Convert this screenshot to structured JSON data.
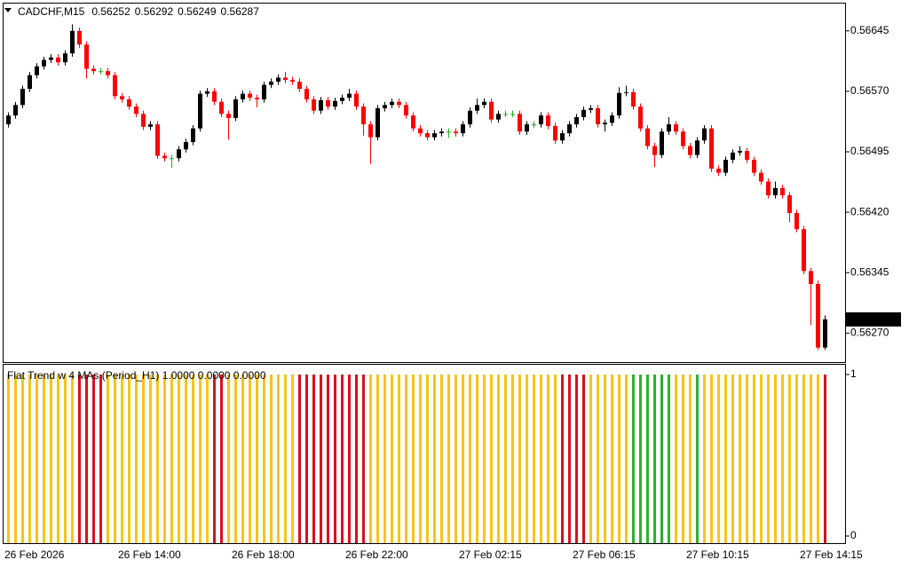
{
  "chart_data": [
    {
      "type": "candlestick",
      "symbol": "CADCHF,M15",
      "categories": [
        "26 Feb 2026",
        null,
        null,
        null,
        null,
        null,
        null,
        null,
        null,
        null,
        null,
        null,
        null,
        null,
        null,
        null,
        "26 Feb 14:00",
        null,
        null,
        null,
        null,
        null,
        null,
        null,
        null,
        null,
        null,
        null,
        null,
        null,
        null,
        null,
        "26 Feb 18:00",
        null,
        null,
        null,
        null,
        null,
        null,
        null,
        null,
        null,
        null,
        null,
        null,
        null,
        null,
        null,
        "26 Feb 22:00",
        null,
        null,
        null,
        null,
        null,
        null,
        null,
        null,
        null,
        null,
        null,
        null,
        null,
        null,
        null,
        "27 Feb 02:15",
        null,
        null,
        null,
        null,
        null,
        null,
        null,
        null,
        null,
        null,
        null,
        null,
        null,
        null,
        null,
        "27 Feb 06:15",
        null,
        null,
        null,
        null,
        null,
        null,
        null,
        null,
        null,
        null,
        null,
        null,
        null,
        null,
        null,
        "27 Feb 10:15",
        null,
        null,
        null,
        null,
        null,
        null,
        null,
        null,
        null,
        null,
        null,
        null,
        null,
        null,
        null,
        "27 Feb 14:15",
        null,
        null,
        null
      ],
      "open": [
        0.56529,
        0.5654,
        0.56553,
        0.56573,
        0.5659,
        0.56601,
        0.56609,
        0.56612,
        0.56606,
        0.56617,
        0.56645,
        0.56628,
        0.56598,
        0.56595,
        0.56595,
        0.5659,
        0.56564,
        0.5656,
        0.56551,
        0.56542,
        0.56526,
        0.56529,
        0.5649,
        0.56487,
        0.56487,
        0.56498,
        0.56507,
        0.56524,
        0.56567,
        0.5657,
        0.56557,
        0.56542,
        0.56537,
        0.5656,
        0.56567,
        0.56562,
        0.5656,
        0.56578,
        0.56582,
        0.56587,
        0.56584,
        0.56582,
        0.56573,
        0.5656,
        0.56546,
        0.56559,
        0.56551,
        0.56558,
        0.56562,
        0.56567,
        0.56551,
        0.56529,
        0.56513,
        0.56549,
        0.56553,
        0.56557,
        0.56553,
        0.5654,
        0.56524,
        0.56518,
        0.56513,
        0.56518,
        0.5652,
        0.5652,
        0.56518,
        0.56529,
        0.56546,
        0.56553,
        0.56557,
        0.56535,
        0.56542,
        0.56542,
        0.56542,
        0.5652,
        0.56529,
        0.56529,
        0.5654,
        0.56527,
        0.56509,
        0.56518,
        0.56529,
        0.56538,
        0.56547,
        0.56549,
        0.56529,
        0.56531,
        0.5654,
        0.56568,
        0.56569,
        0.56551,
        0.56524,
        0.56502,
        0.56491,
        0.5652,
        0.56529,
        0.5652,
        0.56502,
        0.56491,
        0.56509,
        0.56524,
        0.56474,
        0.56469,
        0.56485,
        0.56494,
        0.56496,
        0.56485,
        0.56469,
        0.56458,
        0.56441,
        0.5645,
        0.56441,
        0.56419,
        0.56399,
        0.56347,
        0.56331,
        0.56252
      ],
      "high": [
        0.56544,
        0.56557,
        0.56577,
        0.56594,
        0.56605,
        0.56613,
        0.56616,
        0.56616,
        0.56621,
        0.56653,
        0.56649,
        0.56632,
        0.56602,
        0.56599,
        0.56599,
        0.56594,
        0.56568,
        0.56564,
        0.56555,
        0.56546,
        0.56533,
        0.56533,
        0.56494,
        0.56491,
        0.56502,
        0.56511,
        0.56528,
        0.56571,
        0.56574,
        0.56574,
        0.56561,
        0.56546,
        0.56564,
        0.56571,
        0.56571,
        0.56566,
        0.56582,
        0.56586,
        0.56591,
        0.56594,
        0.56588,
        0.56586,
        0.56577,
        0.56564,
        0.56563,
        0.56563,
        0.56562,
        0.56566,
        0.56573,
        0.56571,
        0.56555,
        0.56533,
        0.56553,
        0.56557,
        0.56561,
        0.56561,
        0.56557,
        0.56544,
        0.56528,
        0.56522,
        0.56522,
        0.56524,
        0.56524,
        0.56524,
        0.56533,
        0.5655,
        0.56561,
        0.56561,
        0.56561,
        0.56546,
        0.56546,
        0.56546,
        0.56546,
        0.56533,
        0.56533,
        0.56544,
        0.56544,
        0.56531,
        0.56522,
        0.56533,
        0.56542,
        0.56551,
        0.56553,
        0.56553,
        0.56535,
        0.56544,
        0.56575,
        0.56577,
        0.56573,
        0.56555,
        0.56528,
        0.56506,
        0.56524,
        0.56538,
        0.56533,
        0.56524,
        0.56506,
        0.56513,
        0.56528,
        0.56528,
        0.56478,
        0.56489,
        0.56498,
        0.56502,
        0.565,
        0.56489,
        0.56473,
        0.56462,
        0.56458,
        0.56454,
        0.56445,
        0.56423,
        0.56403,
        0.56351,
        0.56335,
        0.56292
      ],
      "low": [
        0.56525,
        0.56536,
        0.56549,
        0.56569,
        0.56586,
        0.56597,
        0.56605,
        0.56602,
        0.56602,
        0.56613,
        0.56624,
        0.56586,
        0.56591,
        0.56591,
        0.56586,
        0.5656,
        0.56556,
        0.56547,
        0.56538,
        0.56522,
        0.56522,
        0.56486,
        0.56483,
        0.56475,
        0.56483,
        0.56494,
        0.56503,
        0.5652,
        0.56563,
        0.56553,
        0.56538,
        0.5651,
        0.56533,
        0.56556,
        0.56558,
        0.5655,
        0.56556,
        0.56574,
        0.56578,
        0.5658,
        0.56578,
        0.56569,
        0.56556,
        0.56542,
        0.56542,
        0.56547,
        0.56547,
        0.56554,
        0.56558,
        0.56547,
        0.56515,
        0.5648,
        0.56509,
        0.56545,
        0.56549,
        0.56549,
        0.56536,
        0.5652,
        0.56514,
        0.56509,
        0.56509,
        0.56514,
        0.56512,
        0.56514,
        0.56514,
        0.56525,
        0.56542,
        0.56549,
        0.56531,
        0.56531,
        0.56538,
        0.56538,
        0.56516,
        0.56516,
        0.56525,
        0.56525,
        0.56523,
        0.56505,
        0.56505,
        0.56514,
        0.56525,
        0.56534,
        0.56543,
        0.56525,
        0.5652,
        0.56527,
        0.56536,
        0.56564,
        0.56547,
        0.5652,
        0.56498,
        0.56476,
        0.56487,
        0.56516,
        0.56516,
        0.56498,
        0.56487,
        0.56487,
        0.56505,
        0.5647,
        0.56465,
        0.56465,
        0.56481,
        0.5649,
        0.56481,
        0.56465,
        0.56454,
        0.56437,
        0.56437,
        0.56437,
        0.56408,
        0.56395,
        0.56343,
        0.5628,
        0.56249,
        0.56249
      ],
      "close": [
        0.5654,
        0.56553,
        0.56573,
        0.5659,
        0.56601,
        0.56609,
        0.56612,
        0.56606,
        0.56617,
        0.56645,
        0.56628,
        0.56598,
        0.56595,
        0.56595,
        0.5659,
        0.56564,
        0.5656,
        0.56551,
        0.56542,
        0.56526,
        0.56529,
        0.5649,
        0.56487,
        0.56487,
        0.56498,
        0.56507,
        0.56524,
        0.56567,
        0.5657,
        0.56557,
        0.56542,
        0.56537,
        0.5656,
        0.56567,
        0.56562,
        0.5656,
        0.56578,
        0.56582,
        0.56587,
        0.56584,
        0.56582,
        0.56573,
        0.5656,
        0.56546,
        0.56559,
        0.56551,
        0.56558,
        0.56562,
        0.56567,
        0.56551,
        0.56529,
        0.56513,
        0.56549,
        0.56553,
        0.56557,
        0.56553,
        0.5654,
        0.56524,
        0.56518,
        0.56513,
        0.56518,
        0.5652,
        0.5652,
        0.56518,
        0.56529,
        0.56546,
        0.56553,
        0.56557,
        0.56535,
        0.56542,
        0.56542,
        0.56542,
        0.5652,
        0.56529,
        0.56529,
        0.5654,
        0.56527,
        0.56509,
        0.56518,
        0.56529,
        0.56538,
        0.56547,
        0.56549,
        0.56529,
        0.56531,
        0.5654,
        0.56568,
        0.56569,
        0.56551,
        0.56524,
        0.56502,
        0.56491,
        0.5652,
        0.56529,
        0.5652,
        0.56502,
        0.56491,
        0.56509,
        0.56524,
        0.56474,
        0.56469,
        0.56485,
        0.56494,
        0.56496,
        0.56485,
        0.56469,
        0.56458,
        0.56441,
        0.5645,
        0.56441,
        0.56419,
        0.56399,
        0.56347,
        0.56331,
        0.56252,
        0.56287
      ],
      "up_color": "#000000",
      "down_color": "#ff0000",
      "flat_color": "#22aa22",
      "ylim": [
        0.56234,
        0.5668
      ],
      "yticks": [
        0.56645,
        {
          "value": 0.5657,
          "label": "0.56570"
        },
        0.56495,
        {
          "value": 0.5642,
          "label": "0.56420"
        },
        0.56345,
        {
          "value": 0.5627,
          "label": "0.56270"
        }
      ]
    },
    {
      "type": "bar",
      "label": "Flat Trend w 4 MAs (Period_H1) 1.0000 0.0000 0.0000",
      "values": [
        1,
        1,
        1,
        1,
        1,
        1,
        1,
        1,
        1,
        1,
        1,
        1,
        1,
        1,
        1,
        1,
        1,
        1,
        1,
        1,
        1,
        1,
        1,
        1,
        1,
        1,
        1,
        1,
        1,
        1,
        1,
        1,
        1,
        1,
        1,
        1,
        1,
        1,
        1,
        1,
        1,
        1,
        1,
        1,
        1,
        1,
        1,
        1,
        1,
        1,
        1,
        1,
        1,
        1,
        1,
        1,
        1,
        1,
        1,
        1,
        1,
        1,
        1,
        1,
        1,
        1,
        1,
        1,
        1,
        1,
        1,
        1,
        1,
        1,
        1,
        1,
        1,
        1,
        1,
        1,
        1,
        1,
        1,
        1,
        1,
        1,
        1,
        1,
        1,
        1,
        1,
        1,
        1,
        1,
        1,
        1,
        1,
        1,
        1,
        1,
        1,
        1,
        1,
        1,
        1,
        1,
        1,
        1,
        1,
        1,
        1,
        1,
        1,
        1,
        1,
        1
      ],
      "colors": [
        "#f5c518",
        "#f5c518",
        "#f5c518",
        "#f5c518",
        "#f5c518",
        "#f5c518",
        "#f5c518",
        "#f5c518",
        "#f5c518",
        "#f5c518",
        "#d9101e",
        "#d9101e",
        "#d9101e",
        "#d9101e",
        "#f5c518",
        "#f5c518",
        "#f5c518",
        "#f5c518",
        "#f5c518",
        "#f5c518",
        "#f5c518",
        "#f5c518",
        "#f5c518",
        "#f5c518",
        "#f5c518",
        "#f5c518",
        "#f5c518",
        "#f5c518",
        "#f5c518",
        "#d9101e",
        "#d9101e",
        "#f5c518",
        "#f5c518",
        "#f5c518",
        "#f5c518",
        "#f5c518",
        "#f5c518",
        "#f5c518",
        "#f5c518",
        "#f5c518",
        "#f5c518",
        "#d9101e",
        "#d9101e",
        "#d9101e",
        "#d9101e",
        "#d9101e",
        "#d9101e",
        "#d9101e",
        "#d9101e",
        "#d9101e",
        "#d9101e",
        "#f5c518",
        "#f5c518",
        "#f5c518",
        "#f5c518",
        "#f5c518",
        "#f5c518",
        "#f5c518",
        "#f5c518",
        "#f5c518",
        "#f5c518",
        "#f5c518",
        "#f5c518",
        "#f5c518",
        "#f5c518",
        "#f5c518",
        "#f5c518",
        "#f5c518",
        "#f5c518",
        "#f5c518",
        "#f5c518",
        "#f5c518",
        "#f5c518",
        "#f5c518",
        "#f5c518",
        "#f5c518",
        "#f5c518",
        "#f5c518",
        "#d9101e",
        "#d9101e",
        "#d9101e",
        "#d9101e",
        "#f5c518",
        "#f5c518",
        "#f5c518",
        "#f5c518",
        "#f5c518",
        "#f5c518",
        "#2cb22c",
        "#2cb22c",
        "#2cb22c",
        "#2cb22c",
        "#2cb22c",
        "#2cb22c",
        "#f5c518",
        "#f5c518",
        "#f5c518",
        "#2cb22c",
        "#f5c518",
        "#f5c518",
        "#f5c518",
        "#f5c518",
        "#f5c518",
        "#f5c518",
        "#f5c518",
        "#f5c518",
        "#f5c518",
        "#f5c518",
        "#f5c518",
        "#f5c518",
        "#f5c518",
        "#f5c518",
        "#f5c518",
        "#f5c518",
        "#f5c518",
        "#d9101e"
      ],
      "ylim": [
        -0.044,
        1.066
      ],
      "yticks": [
        0,
        1
      ]
    }
  ]
}
